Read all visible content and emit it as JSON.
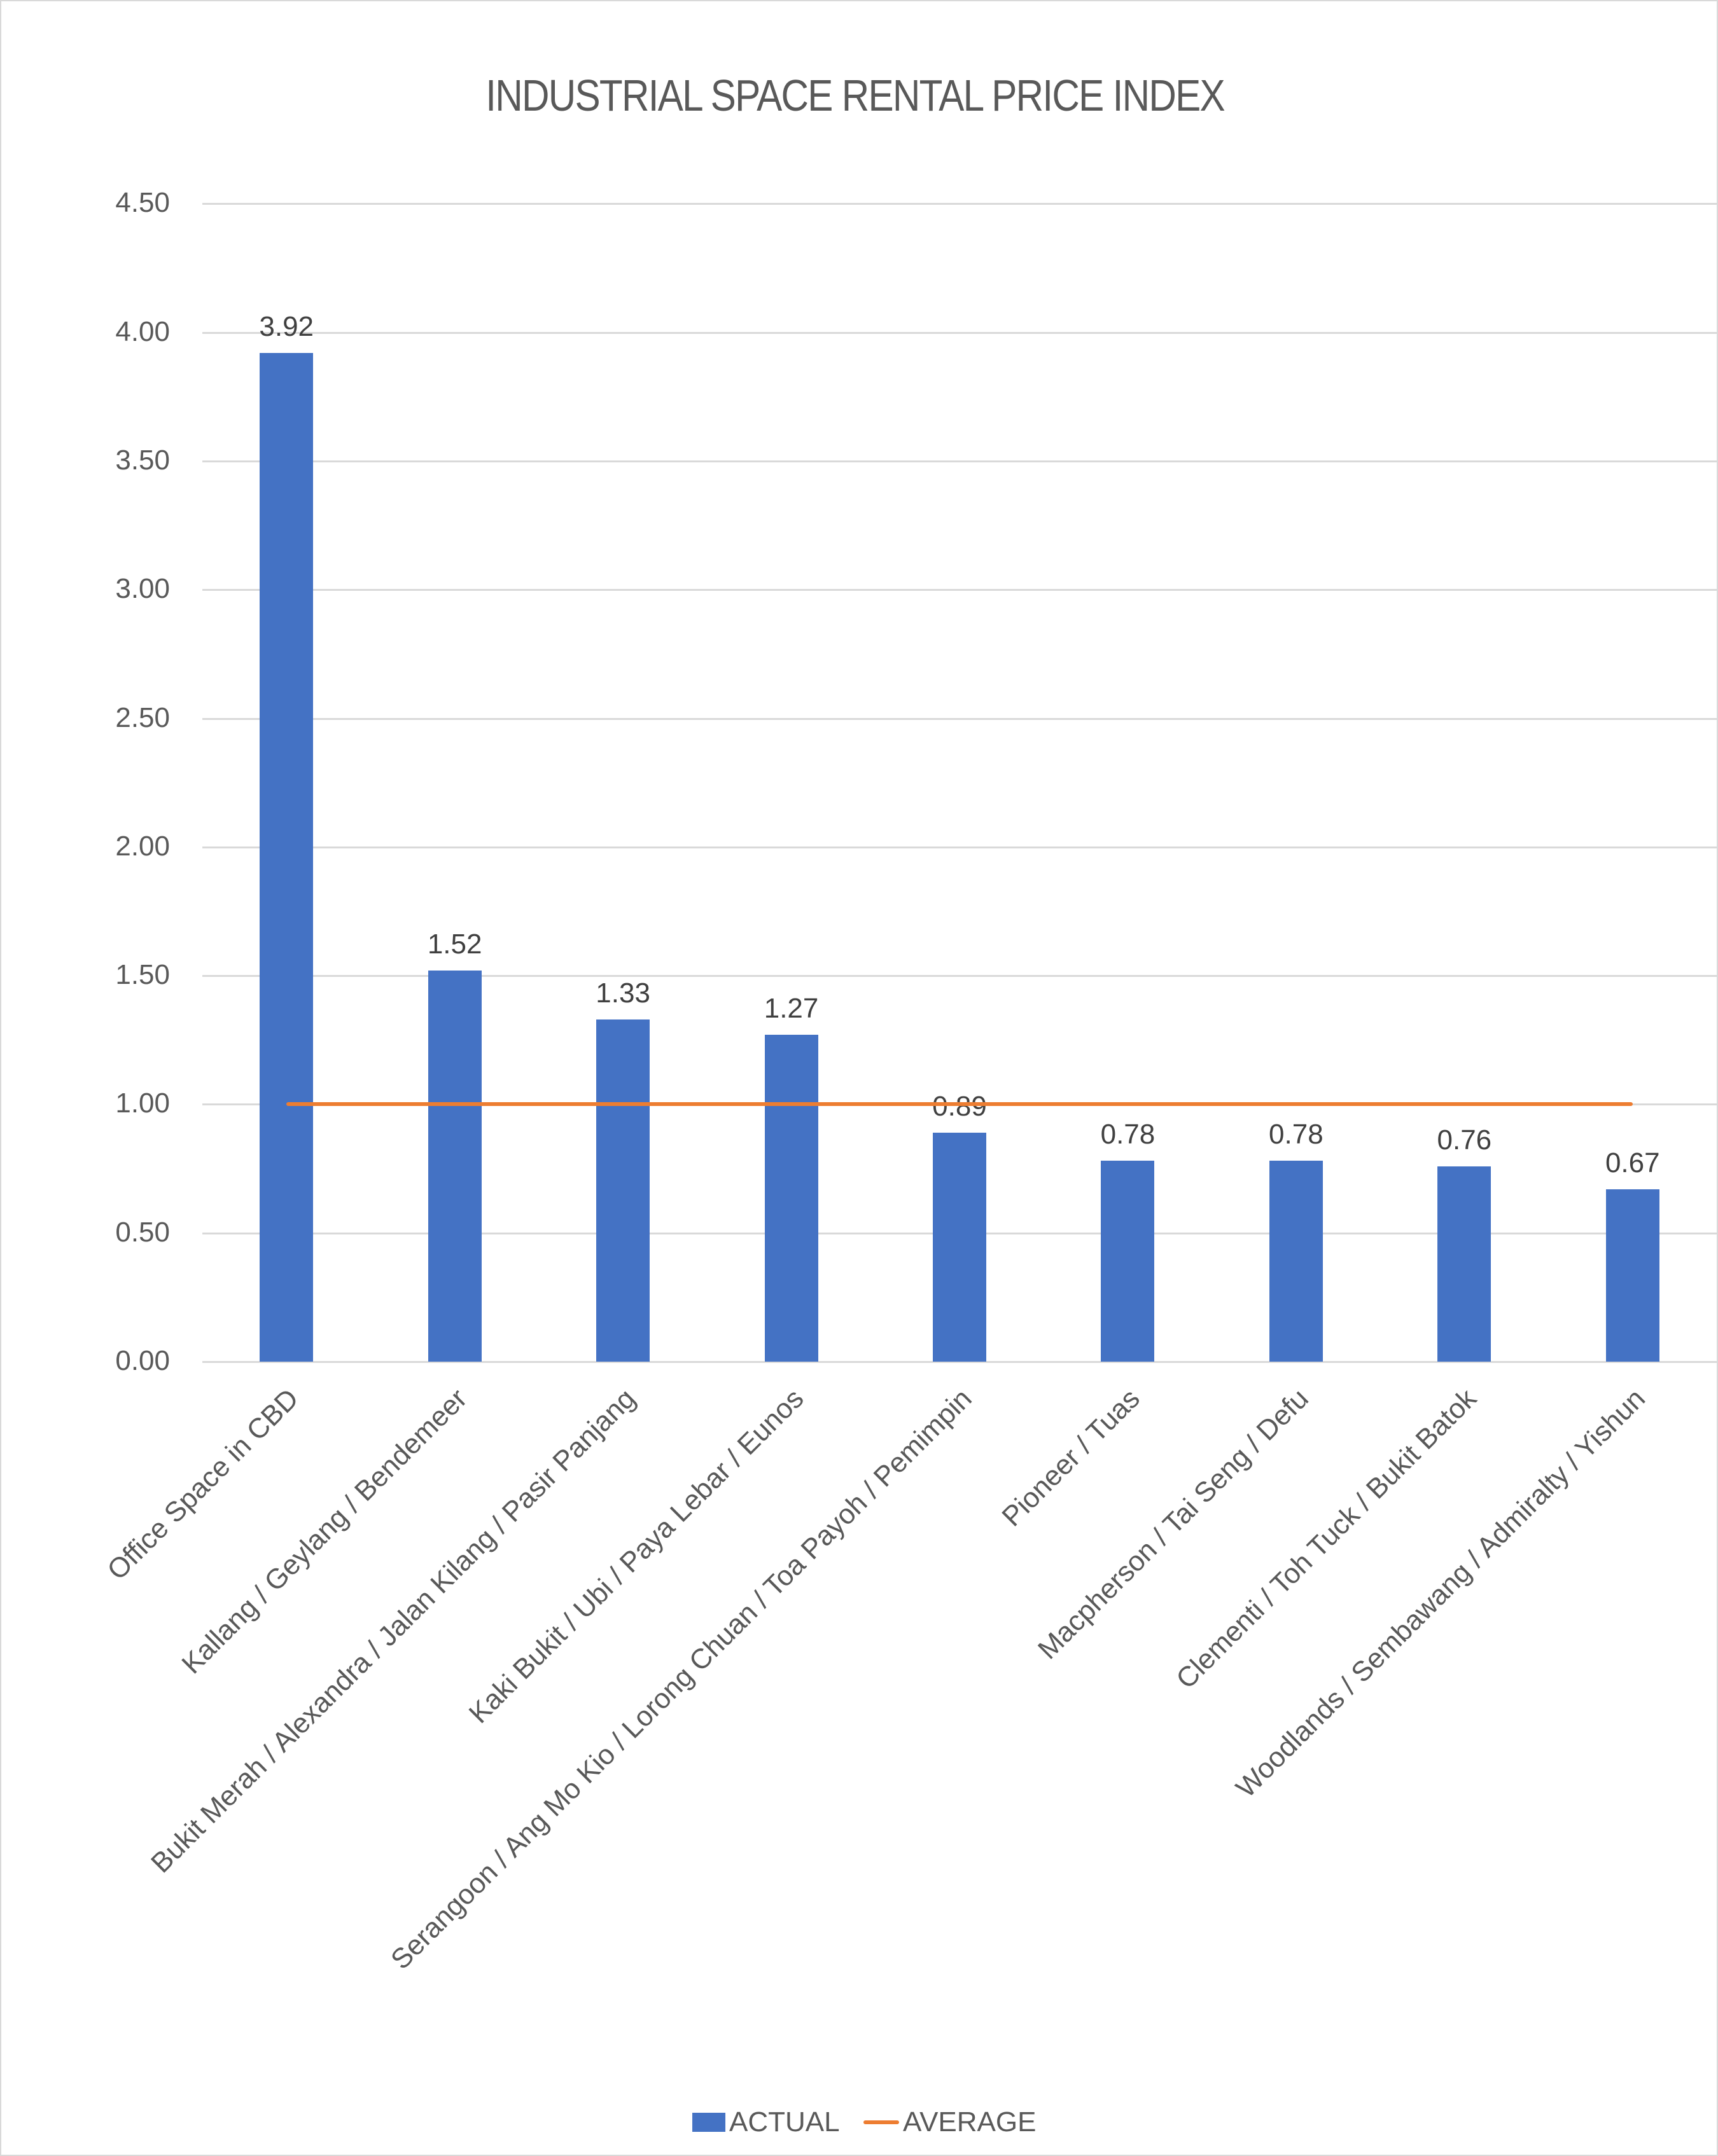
{
  "chart_data": {
    "type": "bar",
    "title": "INDUSTRIAL SPACE RENTAL PRICE INDEX",
    "xlabel": "",
    "ylabel": "",
    "ylim": [
      0,
      4.5
    ],
    "yticks": [
      "0.00",
      "0.50",
      "1.00",
      "1.50",
      "2.00",
      "2.50",
      "3.00",
      "3.50",
      "4.00",
      "4.50"
    ],
    "grid": true,
    "legend_position": "bottom",
    "categories": [
      "Office Space in CBD",
      "Kallang / Geylang / Bendemeer",
      "Bukit Merah / Alexandra / Jalan Kilang / Pasir Panjang",
      "Kaki Bukit / Ubi / Paya Lebar / Eunos",
      "Serangoon / Ang Mo Kio / Lorong Chuan / Toa Payoh / Pemimpin",
      "Pioneer / Tuas",
      "Macpherson / Tai Seng / Defu",
      "Clementi / Toh Tuck / Bukit Batok",
      "Woodlands / Sembawang / Admiralty / Yishun"
    ],
    "series": [
      {
        "name": "ACTUAL",
        "type": "bar",
        "color": "#4472C4",
        "values": [
          3.92,
          1.52,
          1.33,
          1.27,
          0.89,
          0.78,
          0.78,
          0.76,
          0.67
        ],
        "labels": [
          "3.92",
          "1.52",
          "1.33",
          "1.27",
          "0.89",
          "0.78",
          "0.78",
          "0.76",
          "0.67"
        ]
      },
      {
        "name": "AVERAGE",
        "type": "line",
        "color": "#ED7D31",
        "values": [
          1.0,
          1.0,
          1.0,
          1.0,
          1.0,
          1.0,
          1.0,
          1.0,
          1.0
        ]
      }
    ]
  },
  "legend": {
    "actual_label": "ACTUAL",
    "average_label": "AVERAGE"
  }
}
